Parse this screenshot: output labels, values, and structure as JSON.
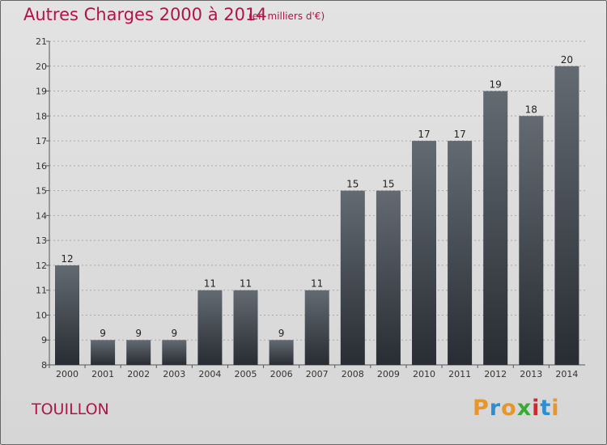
{
  "header": {
    "title": "Autres Charges 2000 à 2014",
    "subtitle": "(en milliers d'€)"
  },
  "footer": {
    "commune": "TOUILLON",
    "logo": {
      "letters": [
        "P",
        "r",
        "o",
        "x",
        "i",
        "t",
        "i"
      ],
      "colors": [
        "#e8952a",
        "#2a8fd4",
        "#e8952a",
        "#3aaa35",
        "#d0282e",
        "#2a8fd4",
        "#e8952a"
      ]
    }
  },
  "colors": {
    "title": "#b0144a",
    "bar_top": "#636a72",
    "bar_bottom": "#282d33",
    "grid": "#a9a9a9"
  },
  "chart_data": {
    "type": "bar",
    "title": "Autres Charges 2000 à 2014",
    "subtitle": "(en milliers d'€)",
    "categories": [
      "2000",
      "2001",
      "2002",
      "2003",
      "2004",
      "2005",
      "2006",
      "2007",
      "2008",
      "2009",
      "2010",
      "2011",
      "2012",
      "2013",
      "2014"
    ],
    "values": [
      12,
      9,
      9,
      9,
      11,
      11,
      9,
      11,
      15,
      15,
      17,
      17,
      19,
      18,
      20
    ],
    "ylim": [
      8,
      21
    ],
    "yticks": [
      8,
      9,
      10,
      11,
      12,
      13,
      14,
      15,
      16,
      17,
      18,
      19,
      20,
      21
    ],
    "grid": true,
    "legend": "none"
  }
}
